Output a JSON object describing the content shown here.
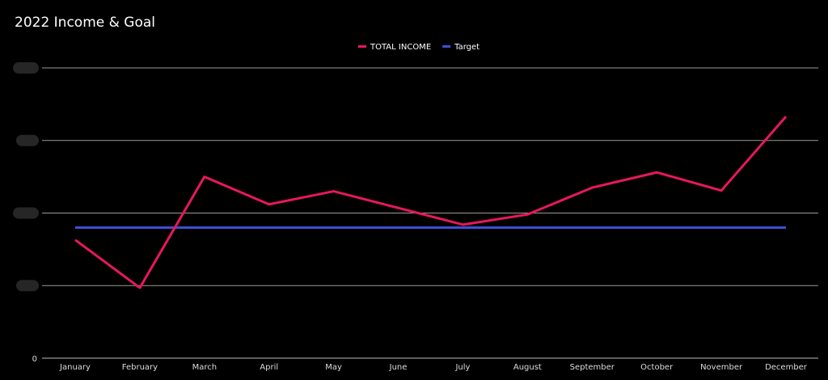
{
  "chart_data": {
    "type": "line",
    "title": "2022 Income & Goal",
    "xlabel": "",
    "ylabel": "",
    "categories": [
      "January",
      "February",
      "March",
      "April",
      "May",
      "June",
      "July",
      "August",
      "September",
      "October",
      "November",
      "December"
    ],
    "series": [
      {
        "name": "TOTAL INCOME",
        "color": "#e8185a",
        "values": [
          1.63,
          0.97,
          2.5,
          2.12,
          2.3,
          2.07,
          1.84,
          1.98,
          2.35,
          2.56,
          2.31,
          3.33
        ]
      },
      {
        "name": "Target",
        "color": "#3f4fd1",
        "values": [
          1.8,
          1.8,
          1.8,
          1.8,
          1.8,
          1.8,
          1.8,
          1.8,
          1.8,
          1.8,
          1.8,
          1.8
        ]
      }
    ],
    "ylim": [
      0,
      4
    ],
    "y_ticks": [
      0,
      1,
      2,
      3,
      4
    ],
    "y_tick_labels_visible": [
      "0"
    ],
    "y_tick_labels_redacted": true,
    "grid": true,
    "legend_position": "top-center"
  }
}
